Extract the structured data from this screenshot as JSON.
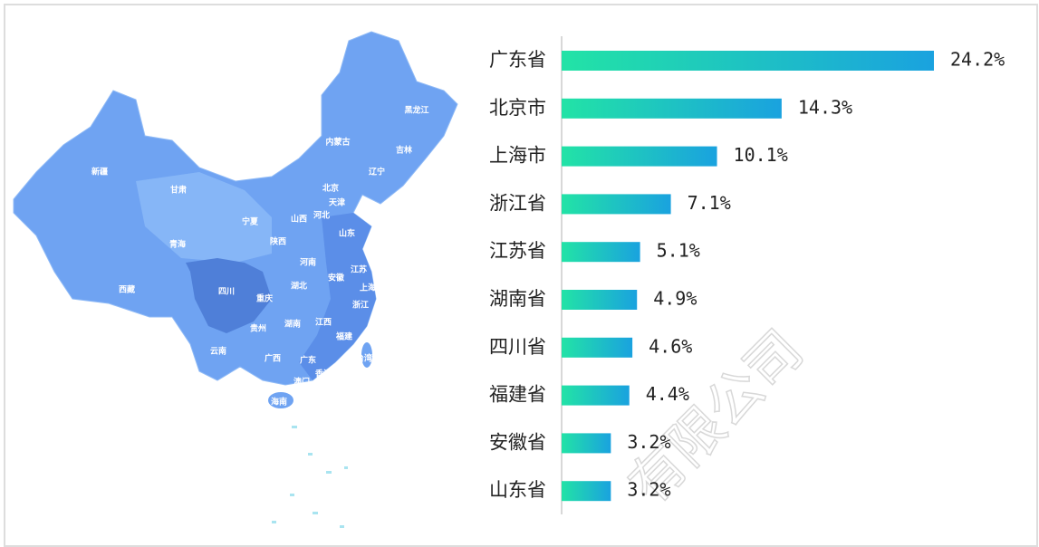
{
  "chart_data": {
    "type": "bar",
    "orientation": "horizontal",
    "categories": [
      "广东省",
      "北京市",
      "上海市",
      "浙江省",
      "江苏省",
      "湖南省",
      "四川省",
      "福建省",
      "安徽省",
      "山东省"
    ],
    "values": [
      24.2,
      14.3,
      10.1,
      7.1,
      5.1,
      4.9,
      4.6,
      4.4,
      3.2,
      3.2
    ],
    "value_labels": [
      "24.2%",
      "14.3%",
      "10.1%",
      "7.1%",
      "5.1%",
      "4.9%",
      "4.6%",
      "4.4%",
      "3.2%",
      "3.2%"
    ],
    "colors": [
      "#22e3a6",
      "#1aa2df"
    ]
  },
  "map": {
    "labels": [
      "黑龙江",
      "内蒙古",
      "吉林",
      "辽宁",
      "新疆",
      "甘肃",
      "北京",
      "天津",
      "宁夏",
      "山西",
      "河北",
      "山东",
      "青海",
      "陕西",
      "河南",
      "江苏",
      "安徽",
      "上海",
      "湖北",
      "西藏",
      "四川",
      "重庆",
      "浙江",
      "湖南",
      "江西",
      "贵州",
      "福建",
      "云南",
      "广西",
      "广东",
      "台湾",
      "香港",
      "澳门",
      "海南"
    ]
  },
  "watermark": "有限公司"
}
